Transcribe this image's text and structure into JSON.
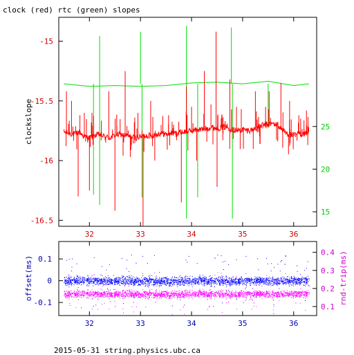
{
  "page_title": "clock (red) rtc (green) slopes",
  "footer": "2015-05-31 string.physics.ubc.ca",
  "colors": {
    "clock": "#ff0000",
    "rtc": "#00dd00",
    "offset": "#0000ff",
    "roundtrip": "#ff00ff",
    "top_axis_x": "#cc0000",
    "top_axis_left": "#cc0000",
    "top_axis_right": "#00cc00",
    "bottom_axis_x": "#0000aa",
    "bottom_axis_left": "#0000aa",
    "bottom_axis_right": "#cc00cc",
    "frame": "#000000"
  },
  "chart_data": [
    {
      "type": "line",
      "title": "clock (red) rtc (green) slopes",
      "xlabel": "",
      "ylabel": "clockslope",
      "y2label": "",
      "xlim": [
        31.4,
        36.45
      ],
      "ylim": [
        -16.55,
        -14.8
      ],
      "y2lim": [
        13.3,
        37.8
      ],
      "x_ticks": [
        32,
        33,
        34,
        35,
        36
      ],
      "y_ticks": [
        -16.5,
        -16,
        -15.5,
        -15
      ],
      "y2_ticks": [
        15,
        20,
        25
      ],
      "series": [
        {
          "name": "clock",
          "axis": "left",
          "x": [
            31.5,
            31.6,
            31.7,
            31.8,
            31.9,
            32.0,
            32.1,
            32.2,
            32.3,
            32.4,
            32.5,
            32.6,
            32.7,
            32.8,
            32.9,
            33.0,
            33.1,
            33.2,
            33.3,
            33.4,
            33.5,
            33.6,
            33.7,
            33.8,
            33.9,
            34.0,
            34.1,
            34.2,
            34.3,
            34.4,
            34.5,
            34.6,
            34.7,
            34.8,
            34.9,
            35.0,
            35.1,
            35.2,
            35.3,
            35.4,
            35.5,
            35.6,
            35.7,
            35.8,
            35.9,
            36.0,
            36.1,
            36.2,
            36.3
          ],
          "y": [
            -15.76,
            -15.77,
            -15.78,
            -15.76,
            -15.8,
            -15.81,
            -15.79,
            -15.78,
            -15.8,
            -15.81,
            -15.79,
            -15.78,
            -15.79,
            -15.8,
            -15.81,
            -15.8,
            -15.79,
            -15.79,
            -15.78,
            -15.77,
            -15.78,
            -15.77,
            -15.77,
            -15.76,
            -15.76,
            -15.75,
            -15.74,
            -15.74,
            -15.73,
            -15.72,
            -15.73,
            -15.72,
            -15.72,
            -15.74,
            -15.75,
            -15.74,
            -15.75,
            -15.74,
            -15.72,
            -15.7,
            -15.7,
            -15.69,
            -15.71,
            -15.75,
            -15.78,
            -15.79,
            -15.77,
            -15.78,
            -15.76
          ],
          "spikes": [
            {
              "x": 31.55,
              "y": -15.42
            },
            {
              "x": 31.65,
              "y": -15.5
            },
            {
              "x": 31.78,
              "y": -16.3
            },
            {
              "x": 31.9,
              "y": -15.6
            },
            {
              "x": 32.0,
              "y": -16.25
            },
            {
              "x": 32.05,
              "y": -15.6
            },
            {
              "x": 32.38,
              "y": -15.42
            },
            {
              "x": 32.5,
              "y": -16.42
            },
            {
              "x": 32.7,
              "y": -15.25
            },
            {
              "x": 32.8,
              "y": -15.97
            },
            {
              "x": 32.95,
              "y": -15.6
            },
            {
              "x": 33.05,
              "y": -16.55
            },
            {
              "x": 33.2,
              "y": -15.5
            },
            {
              "x": 33.28,
              "y": -16.0
            },
            {
              "x": 33.55,
              "y": -15.62
            },
            {
              "x": 33.8,
              "y": -16.35
            },
            {
              "x": 33.9,
              "y": -15.38
            },
            {
              "x": 34.0,
              "y": -15.55
            },
            {
              "x": 34.1,
              "y": -16.0
            },
            {
              "x": 34.25,
              "y": -15.25
            },
            {
              "x": 34.38,
              "y": -15.53
            },
            {
              "x": 34.48,
              "y": -14.92
            },
            {
              "x": 34.5,
              "y": -16.22
            },
            {
              "x": 34.75,
              "y": -15.32
            },
            {
              "x": 34.88,
              "y": -15.55
            },
            {
              "x": 35.25,
              "y": -15.42
            },
            {
              "x": 35.45,
              "y": -15.55
            },
            {
              "x": 35.52,
              "y": -15.42
            },
            {
              "x": 35.75,
              "y": -15.35
            },
            {
              "x": 35.92,
              "y": -15.5
            },
            {
              "x": 36.1,
              "y": -15.62
            },
            {
              "x": 36.25,
              "y": -15.58
            }
          ]
        },
        {
          "name": "rtc",
          "axis": "right",
          "x": [
            31.5,
            32.0,
            32.5,
            33.0,
            33.5,
            34.0,
            34.5,
            35.0,
            35.5,
            36.0,
            36.3
          ],
          "y": [
            30.0,
            29.7,
            29.8,
            29.7,
            29.8,
            30.1,
            30.2,
            30.0,
            30.3,
            29.8,
            30.0
          ],
          "spikes": [
            {
              "x": 32.08,
              "y": 17.0
            },
            {
              "x": 32.2,
              "y": 35.6
            },
            {
              "x": 32.2,
              "y": 15.8
            },
            {
              "x": 33.0,
              "y": 36.1
            },
            {
              "x": 33.03,
              "y": 16.7
            },
            {
              "x": 33.9,
              "y": 36.8
            },
            {
              "x": 33.9,
              "y": 14.2
            },
            {
              "x": 34.12,
              "y": 16.7
            },
            {
              "x": 34.78,
              "y": 36.6
            },
            {
              "x": 34.8,
              "y": 14.2
            },
            {
              "x": 35.5,
              "y": 24.8
            }
          ]
        }
      ]
    },
    {
      "type": "scatter",
      "xlabel": "",
      "ylabel": "offset(ms)",
      "y2label": "rnd-trip(ms)",
      "xlim": [
        31.4,
        36.45
      ],
      "ylim": [
        -0.16,
        0.18
      ],
      "y2lim": [
        0.05,
        0.46
      ],
      "x_ticks": [
        32,
        33,
        34,
        35,
        36
      ],
      "y_ticks": [
        -0.1,
        0,
        0.1
      ],
      "y2_ticks": [
        0.1,
        0.2,
        0.3,
        0.4
      ],
      "series": [
        {
          "name": "offset",
          "axis": "left",
          "x_range": [
            31.5,
            36.3
          ],
          "center": 0.0,
          "band": [
            -0.03,
            0.03
          ]
        },
        {
          "name": "rnd-trip",
          "axis": "right",
          "x_range": [
            31.5,
            36.3
          ],
          "center": 0.17,
          "band": [
            0.14,
            0.2
          ]
        }
      ]
    }
  ]
}
